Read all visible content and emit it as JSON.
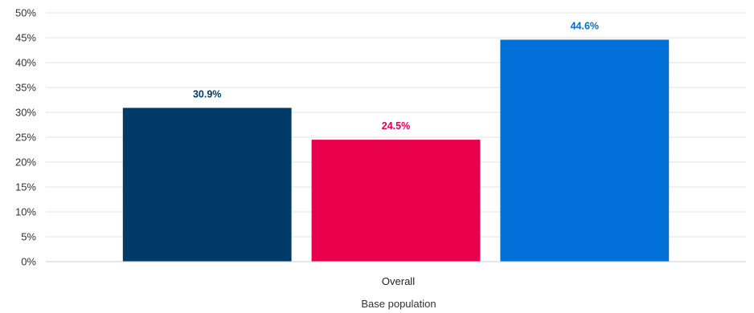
{
  "chart_data": {
    "type": "bar",
    "title": "",
    "xlabel": "Base population",
    "ylabel": "",
    "categories": [
      "Overall"
    ],
    "series": [
      {
        "values": [
          30.9
        ],
        "color": "#003a66",
        "data_label": "30.9%"
      },
      {
        "values": [
          24.5
        ],
        "color": "#e8004c",
        "data_label": "24.5%"
      },
      {
        "values": [
          44.6
        ],
        "color": "#0070d9",
        "data_label": "44.6%"
      }
    ],
    "ylim": [
      0,
      50
    ],
    "y_ticks": [
      {
        "value": 0,
        "label": "0%"
      },
      {
        "value": 5,
        "label": "5%"
      },
      {
        "value": 10,
        "label": "10%"
      },
      {
        "value": 15,
        "label": "15%"
      },
      {
        "value": 20,
        "label": "20%"
      },
      {
        "value": 25,
        "label": "25%"
      },
      {
        "value": 30,
        "label": "30%"
      },
      {
        "value": 35,
        "label": "35%"
      },
      {
        "value": 40,
        "label": "40%"
      },
      {
        "value": 45,
        "label": "45%"
      },
      {
        "value": 50,
        "label": "50%"
      }
    ],
    "grid": true,
    "legend": "none"
  }
}
